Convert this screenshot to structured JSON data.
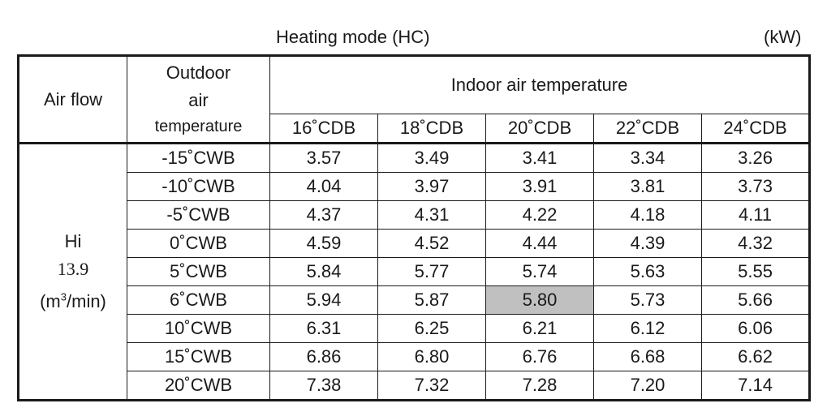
{
  "title": "Heating mode (HC)",
  "unit": "(kW)",
  "header": {
    "air_flow": "Air flow",
    "outdoor_line1": "Outdoor",
    "outdoor_line2": "air",
    "outdoor_line3": "temperature",
    "indoor": "Indoor air temperature",
    "indoor_columns": [
      "16˚CDB",
      "18˚CDB",
      "20˚CDB",
      "22˚CDB",
      "24˚CDB"
    ]
  },
  "air_flow": {
    "mode": "Hi",
    "value": "13.9",
    "unit_prefix": "(m",
    "unit_exp": "3",
    "unit_suffix": "/min)"
  },
  "rows": [
    {
      "outdoor": "-15˚CWB",
      "values": [
        "3.57",
        "3.49",
        "3.41",
        "3.34",
        "3.26"
      ]
    },
    {
      "outdoor": "-10˚CWB",
      "values": [
        "4.04",
        "3.97",
        "3.91",
        "3.81",
        "3.73"
      ]
    },
    {
      "outdoor": "-5˚CWB",
      "values": [
        "4.37",
        "4.31",
        "4.22",
        "4.18",
        "4.11"
      ]
    },
    {
      "outdoor": "0˚CWB",
      "values": [
        "4.59",
        "4.52",
        "4.44",
        "4.39",
        "4.32"
      ]
    },
    {
      "outdoor": "5˚CWB",
      "values": [
        "5.84",
        "5.77",
        "5.74",
        "5.63",
        "5.55"
      ]
    },
    {
      "outdoor": "6˚CWB",
      "values": [
        "5.94",
        "5.87",
        "5.80",
        "5.73",
        "5.66"
      ]
    },
    {
      "outdoor": "10˚CWB",
      "values": [
        "6.31",
        "6.25",
        "6.21",
        "6.12",
        "6.06"
      ]
    },
    {
      "outdoor": "15˚CWB",
      "values": [
        "6.86",
        "6.80",
        "6.76",
        "6.68",
        "6.62"
      ]
    },
    {
      "outdoor": "20˚CWB",
      "values": [
        "7.38",
        "7.32",
        "7.28",
        "7.20",
        "7.14"
      ]
    }
  ],
  "highlight_color": "#c0c0c0"
}
